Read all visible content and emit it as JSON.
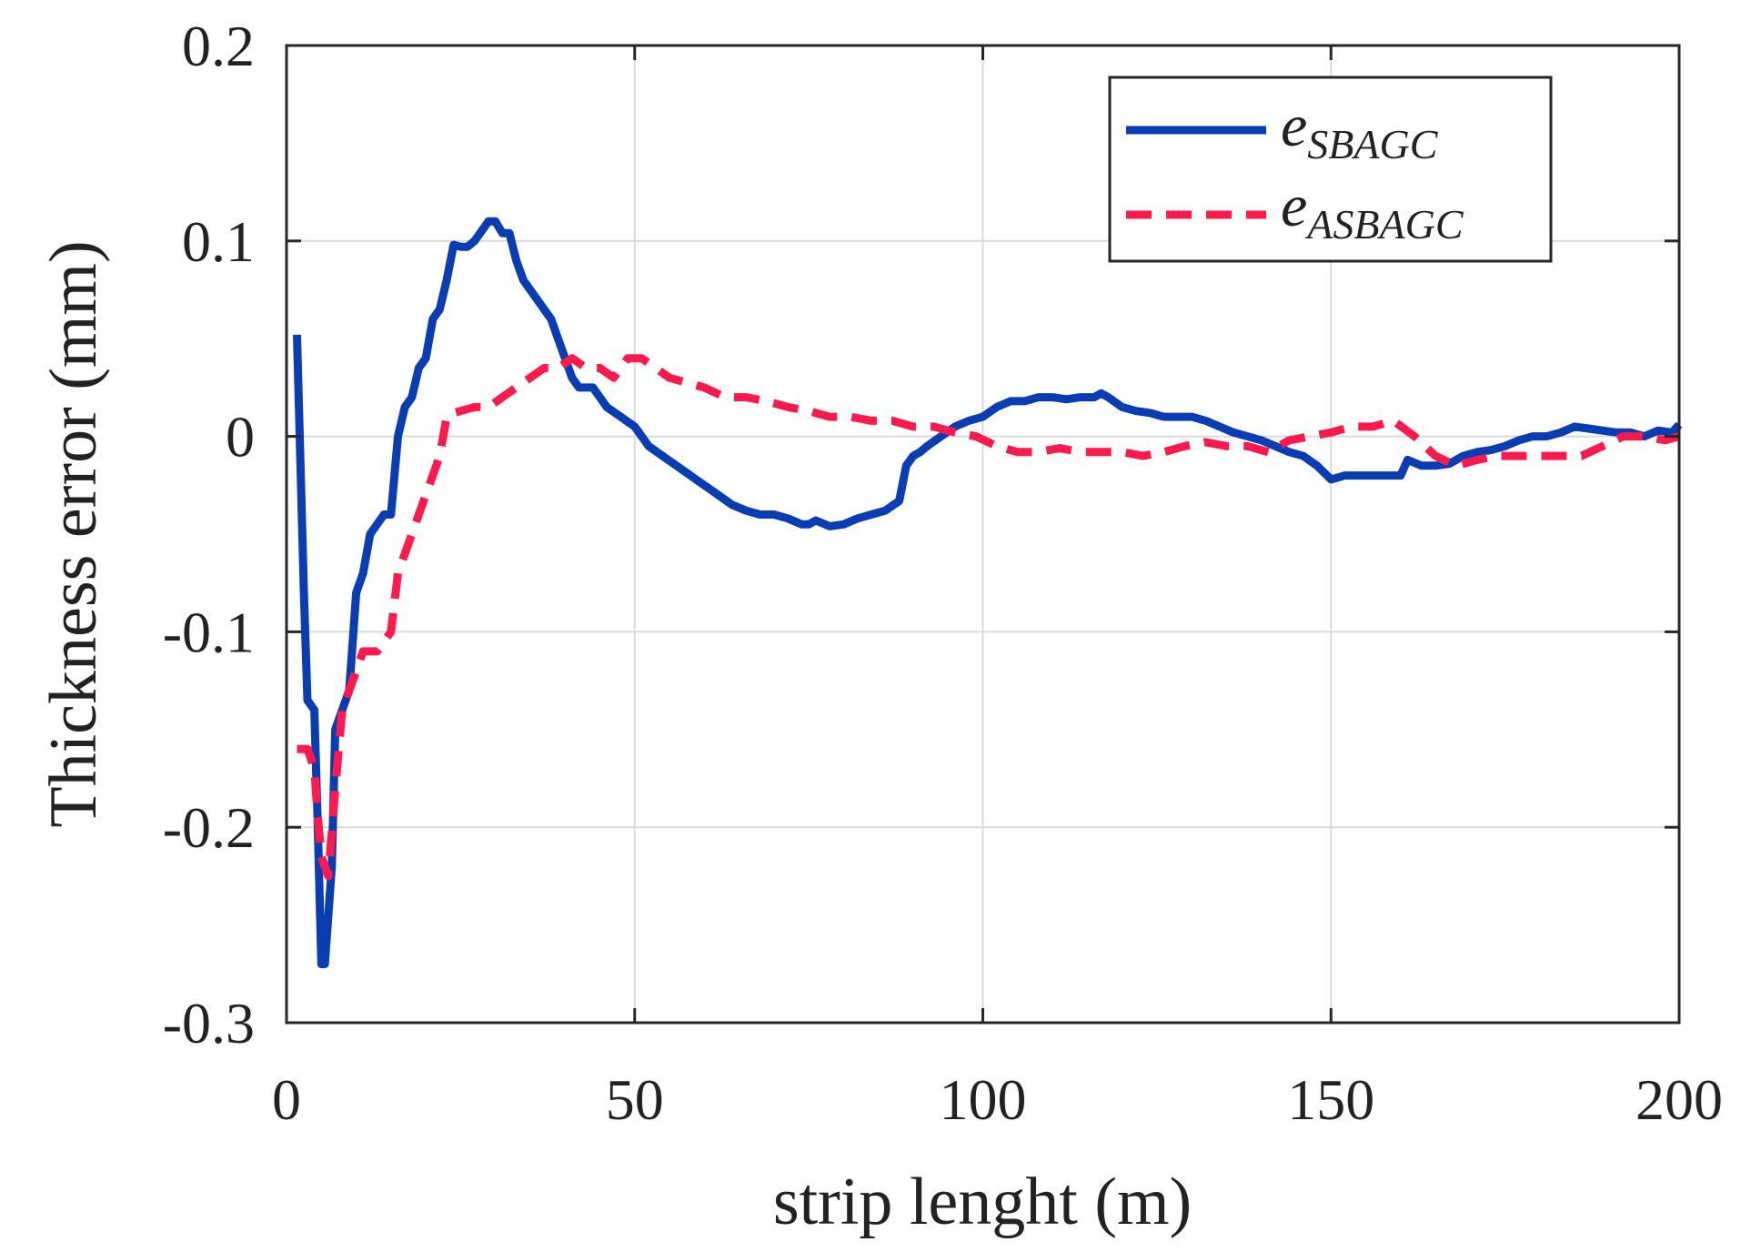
{
  "chart_data": {
    "type": "line",
    "title": "",
    "xlabel": "strip lenght (m)",
    "ylabel": "Thickness error  (mm)",
    "xlim": [
      0,
      200
    ],
    "ylim": [
      -0.3,
      0.2
    ],
    "xticks": [
      0,
      50,
      100,
      150,
      200
    ],
    "xtick_labels": [
      "0",
      "50",
      "100",
      "150",
      "200"
    ],
    "yticks": [
      0.2,
      0.1,
      0,
      -0.1,
      -0.2,
      -0.3
    ],
    "ytick_labels": [
      "0.2",
      "0.1",
      "0",
      "-0.1",
      "-0.2",
      "-0.3"
    ],
    "grid": true,
    "legend_position": "top-right",
    "series": [
      {
        "name": "e_SBAGC",
        "legend_main": "e",
        "legend_sub": "SBAGC",
        "color": "#0a3cb4",
        "style": "solid",
        "x": [
          1.5,
          2.5,
          3,
          4,
          4.5,
          5,
          5.5,
          6.5,
          7,
          8,
          9,
          10,
          11,
          12,
          13,
          14,
          15,
          16,
          17,
          18,
          19,
          20,
          21,
          22,
          23,
          24,
          25,
          26,
          27,
          28,
          29,
          30,
          31,
          32,
          33,
          34,
          35,
          36,
          37,
          38,
          39,
          40,
          41,
          42,
          43,
          44,
          45,
          46,
          48,
          50,
          52,
          54,
          56,
          58,
          60,
          62,
          64,
          66,
          68,
          70,
          72,
          74,
          75,
          76,
          78,
          80,
          82,
          84,
          86,
          88,
          89,
          90,
          91,
          92,
          94,
          96,
          98,
          100,
          102,
          104,
          106,
          108,
          110,
          112,
          114,
          116,
          117,
          118,
          120,
          122,
          124,
          126,
          128,
          130,
          132,
          134,
          136,
          138,
          140,
          142,
          144,
          146,
          148,
          150,
          152,
          154,
          156,
          158,
          160,
          161,
          163,
          165,
          167,
          169,
          171,
          173,
          175,
          177,
          179,
          181,
          183,
          185,
          187,
          189,
          191,
          193,
          195,
          197,
          199,
          200
        ],
        "y": [
          0.052,
          -0.08,
          -0.135,
          -0.14,
          -0.2,
          -0.27,
          -0.27,
          -0.22,
          -0.15,
          -0.14,
          -0.13,
          -0.08,
          -0.07,
          -0.05,
          -0.045,
          -0.04,
          -0.04,
          0.0,
          0.015,
          0.02,
          0.035,
          0.04,
          0.06,
          0.065,
          0.08,
          0.098,
          0.097,
          0.097,
          0.1,
          0.105,
          0.11,
          0.11,
          0.104,
          0.104,
          0.09,
          0.08,
          0.075,
          0.07,
          0.065,
          0.06,
          0.05,
          0.04,
          0.03,
          0.025,
          0.025,
          0.025,
          0.02,
          0.015,
          0.01,
          0.005,
          -0.005,
          -0.01,
          -0.015,
          -0.02,
          -0.025,
          -0.03,
          -0.035,
          -0.038,
          -0.04,
          -0.04,
          -0.042,
          -0.045,
          -0.045,
          -0.043,
          -0.046,
          -0.045,
          -0.042,
          -0.04,
          -0.038,
          -0.033,
          -0.015,
          -0.01,
          -0.008,
          -0.005,
          0.0,
          0.005,
          0.008,
          0.01,
          0.015,
          0.018,
          0.018,
          0.02,
          0.02,
          0.019,
          0.02,
          0.02,
          0.022,
          0.02,
          0.015,
          0.013,
          0.012,
          0.01,
          0.01,
          0.01,
          0.008,
          0.005,
          0.002,
          0.0,
          -0.002,
          -0.005,
          -0.008,
          -0.01,
          -0.015,
          -0.022,
          -0.02,
          -0.02,
          -0.02,
          -0.02,
          -0.02,
          -0.012,
          -0.015,
          -0.015,
          -0.014,
          -0.01,
          -0.008,
          -0.007,
          -0.005,
          -0.002,
          0.0,
          0.0,
          0.002,
          0.005,
          0.004,
          0.003,
          0.002,
          0.002,
          0.0,
          0.003,
          0.002,
          0.006
        ]
      },
      {
        "name": "e_ASBAGC",
        "legend_main": "e",
        "legend_sub": "ASBAGC",
        "color": "#ff1a4d",
        "style": "dashed",
        "x": [
          1.5,
          3,
          4,
          4.5,
          5,
          5.5,
          6,
          7,
          8,
          9,
          10,
          11,
          12,
          13,
          14,
          15,
          16,
          17,
          18,
          19,
          20,
          21,
          22,
          23,
          24,
          25,
          27,
          29,
          31,
          33,
          35,
          37,
          39,
          41,
          43,
          45,
          47,
          49,
          51,
          53,
          55,
          57,
          60,
          63,
          66,
          69,
          72,
          75,
          78,
          81,
          84,
          87,
          90,
          93,
          96,
          99,
          102,
          105,
          108,
          111,
          114,
          117,
          120,
          123,
          126,
          129,
          132,
          135,
          138,
          141,
          144,
          147,
          150,
          153,
          156,
          159,
          162,
          165,
          168,
          171,
          174,
          177,
          180,
          183,
          186,
          189,
          192,
          195,
          198,
          200
        ],
        "y": [
          -0.16,
          -0.16,
          -0.17,
          -0.195,
          -0.215,
          -0.22,
          -0.225,
          -0.18,
          -0.14,
          -0.13,
          -0.12,
          -0.11,
          -0.11,
          -0.11,
          -0.105,
          -0.1,
          -0.07,
          -0.06,
          -0.05,
          -0.04,
          -0.03,
          -0.02,
          -0.01,
          0.01,
          0.012,
          0.013,
          0.015,
          0.015,
          0.02,
          0.025,
          0.03,
          0.035,
          0.035,
          0.04,
          0.035,
          0.035,
          0.03,
          0.04,
          0.04,
          0.035,
          0.03,
          0.028,
          0.025,
          0.02,
          0.02,
          0.018,
          0.015,
          0.013,
          0.01,
          0.01,
          0.008,
          0.008,
          0.005,
          0.005,
          0.002,
          0.0,
          -0.005,
          -0.008,
          -0.008,
          -0.006,
          -0.008,
          -0.008,
          -0.008,
          -0.01,
          -0.008,
          -0.005,
          -0.003,
          -0.005,
          -0.005,
          -0.008,
          -0.002,
          0.0,
          0.002,
          0.005,
          0.005,
          0.008,
          0.0,
          -0.01,
          -0.015,
          -0.012,
          -0.01,
          -0.01,
          -0.01,
          -0.01,
          -0.01,
          -0.005,
          0.0,
          0.0,
          -0.002,
          0.0
        ]
      }
    ]
  }
}
